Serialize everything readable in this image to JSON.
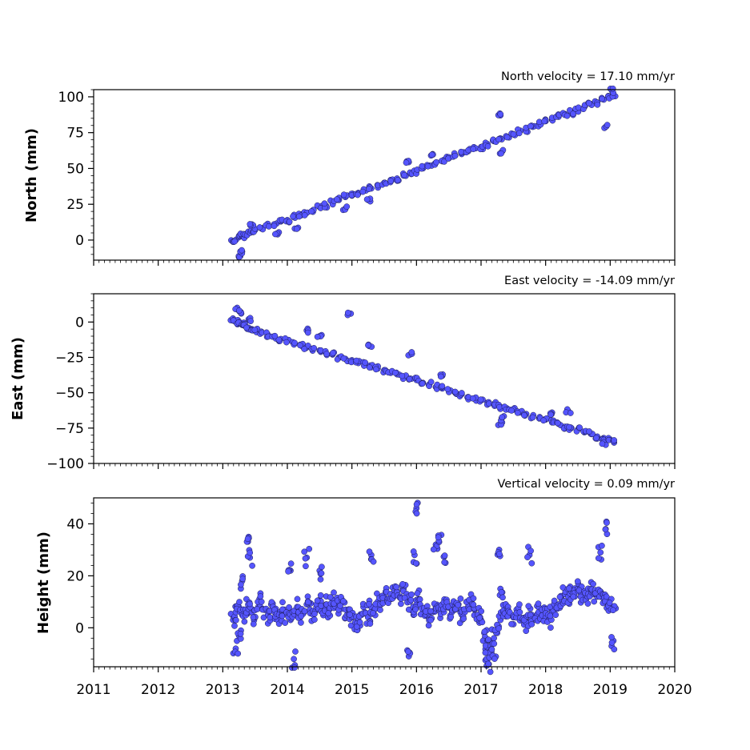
{
  "chart_data": [
    {
      "type": "scatter",
      "panel": "north",
      "title": "North velocity = 17.10 mm/yr",
      "ylabel": "North (mm)",
      "xlim": [
        2011,
        2020
      ],
      "ylim": [
        -14,
        105
      ],
      "yticks": [
        0,
        25,
        50,
        75,
        100
      ],
      "ytick_labels": [
        "0",
        "25",
        "50",
        "75",
        "100"
      ],
      "xticks": [
        2011,
        2012,
        2013,
        2014,
        2015,
        2016,
        2017,
        2018,
        2019,
        2020
      ],
      "xtick_labels": [],
      "marker_color": "#5555ff",
      "marker_edge": "#1a1a4d",
      "series": [
        {
          "x": [
            2013.16,
            2013.2,
            2013.25,
            2013.3,
            2013.35,
            2013.4,
            2013.45,
            2013.5,
            2013.6,
            2013.7,
            2013.8,
            2013.9,
            2014.0,
            2014.1,
            2014.2,
            2014.3,
            2014.4,
            2014.5,
            2014.6,
            2014.7,
            2014.8,
            2014.9,
            2015.0,
            2015.1,
            2015.2,
            2015.3,
            2015.4,
            2015.5,
            2015.6,
            2015.7,
            2015.8,
            2015.9,
            2016.0,
            2016.1,
            2016.2,
            2016.3,
            2016.4,
            2016.5,
            2016.6,
            2016.7,
            2016.8,
            2016.9,
            2017.0,
            2017.1,
            2017.2,
            2017.3,
            2017.4,
            2017.5,
            2017.6,
            2017.7,
            2017.8,
            2017.9,
            2018.0,
            2018.1,
            2018.2,
            2018.3,
            2018.4,
            2018.5,
            2018.6,
            2018.7,
            2018.8,
            2018.9,
            2019.0,
            2019.05,
            2013.25,
            2013.3,
            2013.45,
            2013.85,
            2014.15,
            2014.9,
            2015.25,
            2015.85,
            2016.25,
            2017.3,
            2017.33,
            2018.93,
            2019.03
          ],
          "y": [
            -1,
            0,
            2,
            3,
            4,
            5,
            6,
            7,
            8,
            10,
            11,
            13,
            14,
            16,
            18,
            19,
            21,
            23,
            24,
            26,
            28,
            30,
            31,
            33,
            35,
            36,
            38,
            40,
            42,
            43,
            45,
            47,
            48,
            50,
            52,
            54,
            55,
            57,
            59,
            60,
            62,
            64,
            65,
            67,
            69,
            71,
            72,
            74,
            76,
            77,
            79,
            81,
            83,
            84,
            86,
            88,
            89,
            91,
            93,
            95,
            96,
            98,
            100,
            101,
            -12,
            -8,
            11,
            4,
            8,
            22,
            28,
            55,
            60,
            87,
            62,
            79,
            104
          ]
        }
      ]
    },
    {
      "type": "scatter",
      "panel": "east",
      "title": "East velocity = -14.09 mm/yr",
      "ylabel": "East (mm)",
      "xlim": [
        2011,
        2020
      ],
      "ylim": [
        -100,
        20
      ],
      "yticks": [
        -100,
        -75,
        -50,
        -25,
        0
      ],
      "ytick_labels": [
        "−100",
        "−75",
        "−50",
        "−25",
        "0"
      ],
      "xticks": [
        2011,
        2012,
        2013,
        2014,
        2015,
        2016,
        2017,
        2018,
        2019,
        2020
      ],
      "xtick_labels": [],
      "marker_color": "#5555ff",
      "marker_edge": "#1a1a4d",
      "series": [
        {
          "x": [
            2013.16,
            2013.2,
            2013.25,
            2013.3,
            2013.35,
            2013.4,
            2013.45,
            2013.5,
            2013.6,
            2013.7,
            2013.8,
            2013.9,
            2014.0,
            2014.1,
            2014.2,
            2014.3,
            2014.4,
            2014.5,
            2014.6,
            2014.7,
            2014.8,
            2014.9,
            2015.0,
            2015.1,
            2015.2,
            2015.3,
            2015.4,
            2015.5,
            2015.6,
            2015.7,
            2015.8,
            2015.9,
            2016.0,
            2016.1,
            2016.2,
            2016.3,
            2016.4,
            2016.5,
            2016.6,
            2016.7,
            2016.8,
            2016.9,
            2017.0,
            2017.1,
            2017.2,
            2017.3,
            2017.4,
            2017.5,
            2017.6,
            2017.7,
            2017.8,
            2017.9,
            2018.0,
            2018.1,
            2018.2,
            2018.3,
            2018.4,
            2018.5,
            2018.6,
            2018.7,
            2018.8,
            2018.9,
            2019.0,
            2019.05,
            2013.22,
            2013.28,
            2013.4,
            2014.3,
            2014.5,
            2014.97,
            2015.27,
            2015.9,
            2016.4,
            2017.3,
            2017.32,
            2018.1,
            2018.35,
            2018.9
          ],
          "y": [
            1,
            0,
            -1,
            -2,
            -3,
            -4,
            -5,
            -6,
            -7,
            -9,
            -10,
            -12,
            -13,
            -15,
            -16,
            -18,
            -19,
            -20,
            -22,
            -23,
            -25,
            -26,
            -27,
            -29,
            -30,
            -32,
            -33,
            -34,
            -36,
            -37,
            -39,
            -40,
            -41,
            -43,
            -44,
            -46,
            -47,
            -48,
            -50,
            -51,
            -53,
            -54,
            -55,
            -57,
            -58,
            -60,
            -61,
            -62,
            -64,
            -65,
            -67,
            -68,
            -69,
            -71,
            -72,
            -74,
            -75,
            -76,
            -78,
            -79,
            -81,
            -82,
            -83,
            -84,
            9,
            7,
            2,
            -6,
            -10,
            6,
            -17,
            -23,
            -38,
            -72,
            -68,
            -64,
            -63,
            -86
          ]
        }
      ]
    },
    {
      "type": "scatter",
      "panel": "height",
      "title": "Vertical velocity = 0.09 mm/yr",
      "ylabel": "Height (mm)",
      "xlim": [
        2011,
        2020
      ],
      "ylim": [
        -15,
        50
      ],
      "yticks": [
        0,
        20,
        40
      ],
      "ytick_labels": [
        "0",
        "20",
        "40"
      ],
      "xticks": [
        2011,
        2012,
        2013,
        2014,
        2015,
        2016,
        2017,
        2018,
        2019,
        2020
      ],
      "xtick_labels": [
        "2011",
        "2012",
        "2013",
        "2014",
        "2015",
        "2016",
        "2017",
        "2018",
        "2019",
        "2020"
      ],
      "marker_color": "#5555ff",
      "marker_edge": "#1a1a4d",
      "series": [
        {
          "x": [
            2013.16,
            2013.2,
            2013.25,
            2013.3,
            2013.35,
            2013.4,
            2013.45,
            2013.5,
            2013.55,
            2013.6,
            2013.65,
            2013.7,
            2013.75,
            2013.8,
            2013.85,
            2013.9,
            2013.95,
            2014.0,
            2014.05,
            2014.1,
            2014.15,
            2014.2,
            2014.25,
            2014.3,
            2014.35,
            2014.4,
            2014.45,
            2014.5,
            2014.55,
            2014.6,
            2014.65,
            2014.7,
            2014.75,
            2014.8,
            2014.85,
            2014.9,
            2014.95,
            2015.0,
            2015.05,
            2015.1,
            2015.15,
            2015.2,
            2015.25,
            2015.3,
            2015.35,
            2015.4,
            2015.45,
            2015.5,
            2015.55,
            2015.6,
            2015.65,
            2015.7,
            2015.75,
            2015.8,
            2015.85,
            2015.9,
            2015.95,
            2016.0,
            2016.05,
            2016.1,
            2016.15,
            2016.2,
            2016.25,
            2016.3,
            2016.35,
            2016.4,
            2016.45,
            2016.5,
            2016.55,
            2016.6,
            2016.65,
            2016.7,
            2016.75,
            2016.8,
            2016.85,
            2016.9,
            2016.95,
            2017.0,
            2017.05,
            2017.1,
            2017.15,
            2017.2,
            2017.25,
            2017.3,
            2017.35,
            2017.4,
            2017.45,
            2017.5,
            2017.55,
            2017.6,
            2017.65,
            2017.7,
            2017.75,
            2017.8,
            2017.85,
            2017.9,
            2017.95,
            2018.0,
            2018.05,
            2018.1,
            2018.15,
            2018.2,
            2018.25,
            2018.3,
            2018.35,
            2018.4,
            2018.45,
            2018.5,
            2018.55,
            2018.6,
            2018.65,
            2018.7,
            2018.75,
            2018.8,
            2018.85,
            2018.9,
            2018.95,
            2019.0,
            2019.05,
            2013.2,
            2013.25,
            2013.4,
            2013.42,
            2013.3,
            2014.1,
            2014.3,
            2014.05,
            2014.5,
            2015.3,
            2015.88,
            2015.97,
            2016.0,
            2016.3,
            2016.35,
            2016.45,
            2017.1,
            2017.12,
            2017.2,
            2017.28,
            2017.3,
            2017.75,
            2018.85,
            2018.93,
            2019.05
          ],
          "y": [
            3,
            6,
            8,
            5,
            7,
            9,
            6,
            4,
            8,
            10,
            7,
            5,
            9,
            6,
            3,
            4,
            7,
            5,
            3,
            6,
            8,
            4,
            6,
            9,
            7,
            5,
            8,
            10,
            6,
            9,
            7,
            11,
            9,
            8,
            10,
            7,
            5,
            4,
            2,
            3,
            5,
            6,
            4,
            8,
            7,
            10,
            9,
            12,
            11,
            13,
            12,
            14,
            12,
            15,
            13,
            10,
            8,
            9,
            11,
            7,
            5,
            4,
            6,
            8,
            7,
            9,
            10,
            8,
            6,
            7,
            9,
            5,
            6,
            8,
            10,
            7,
            5,
            3,
            -2,
            -5,
            -7,
            -4,
            -2,
            3,
            6,
            8,
            5,
            4,
            7,
            6,
            3,
            2,
            5,
            4,
            3,
            6,
            5,
            4,
            3,
            6,
            8,
            9,
            11,
            13,
            12,
            14,
            12,
            15,
            13,
            14,
            12,
            15,
            13,
            12,
            14,
            11,
            10,
            8,
            7,
            -8,
            -3,
            35,
            27,
            18,
            -12,
            27,
            22,
            22,
            28,
            -11,
            28,
            46,
            32,
            33,
            25,
            -12,
            -14,
            -11,
            30,
            15,
            28,
            29,
            38,
            -5
          ]
        }
      ]
    }
  ]
}
